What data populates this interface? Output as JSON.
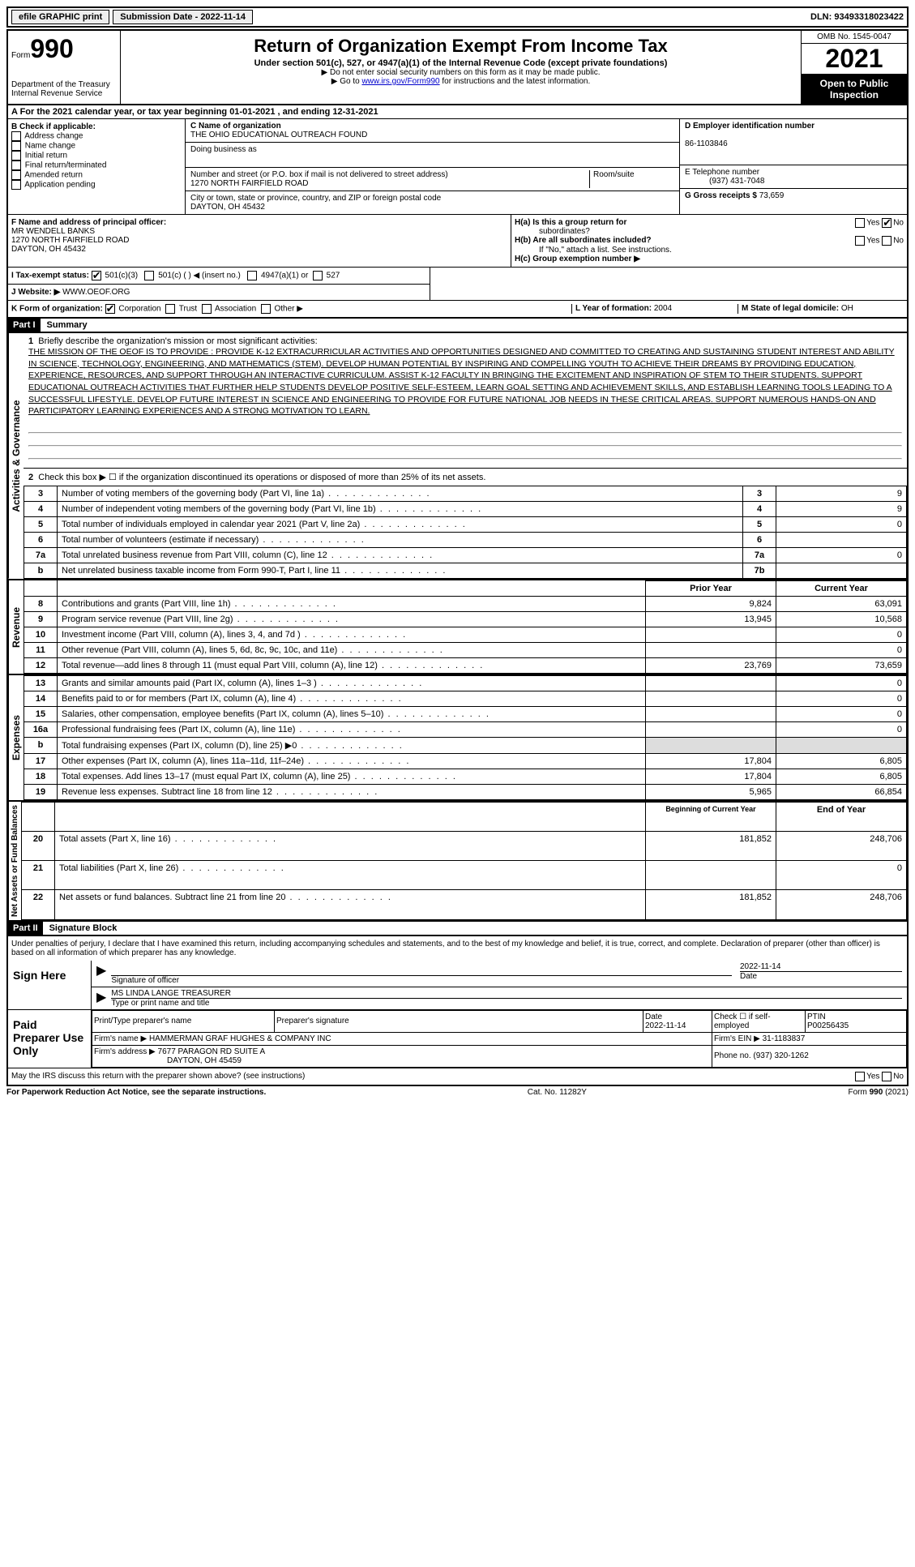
{
  "top_bar": {
    "efile": "efile GRAPHIC print",
    "submission": "Submission Date - 2022-11-14",
    "dln": "DLN: 93493318023422"
  },
  "header": {
    "form_label": "Form",
    "form_number": "990",
    "dept": "Department of the Treasury",
    "irs": "Internal Revenue Service",
    "title": "Return of Organization Exempt From Income Tax",
    "subtitle": "Under section 501(c), 527, or 4947(a)(1) of the Internal Revenue Code (except private foundations)",
    "note1": "▶ Do not enter social security numbers on this form as it may be made public.",
    "note2_prefix": "▶ Go to ",
    "note2_link": "www.irs.gov/Form990",
    "note2_suffix": " for instructions and the latest information.",
    "omb": "OMB No. 1545-0047",
    "year": "2021",
    "open": "Open to Public Inspection"
  },
  "section_a": {
    "line_a": "A For the 2021 calendar year, or tax year beginning 01-01-2021   , and ending 12-31-2021",
    "b_label": "B Check if applicable:",
    "b_items": [
      "Address change",
      "Name change",
      "Initial return",
      "Final return/terminated",
      "Amended return",
      "Application pending"
    ],
    "c_label": "C Name of organization",
    "c_name": "THE OHIO EDUCATIONAL OUTREACH FOUND",
    "dba": "Doing business as",
    "street_label": "Number and street (or P.O. box if mail is not delivered to street address)",
    "street": "1270 NORTH FAIRFIELD ROAD",
    "room_label": "Room/suite",
    "city_label": "City or town, state or province, country, and ZIP or foreign postal code",
    "city": "DAYTON, OH  45432",
    "d_label": "D Employer identification number",
    "d_value": "86-1103846",
    "e_label": "E Telephone number",
    "e_value": "(937) 431-7048",
    "g_label": "G Gross receipts $",
    "g_value": "73,659",
    "f_label": "F  Name and address of principal officer:",
    "f_name": "MR WENDELL BANKS",
    "f_street": "1270 NORTH FAIRFIELD ROAD",
    "f_city": "DAYTON, OH  45432",
    "ha_label": "H(a)  Is this a group return for",
    "ha_sub": "subordinates?",
    "hb_label": "H(b)  Are all subordinates included?",
    "hb_note": "If \"No,\" attach a list. See instructions.",
    "hc_label": "H(c)  Group exemption number ▶",
    "yes": "Yes",
    "no": "No",
    "i_label": "I   Tax-exempt status:",
    "i_501c3": "501(c)(3)",
    "i_501c": "501(c) (  ) ◀ (insert no.)",
    "i_4947": "4947(a)(1) or",
    "i_527": "527",
    "j_label": "J   Website: ▶",
    "j_value": "WWW.OEOF.ORG",
    "k_label": "K Form of organization:",
    "k_corp": "Corporation",
    "k_trust": "Trust",
    "k_assoc": "Association",
    "k_other": "Other ▶",
    "l_label": "L Year of formation:",
    "l_value": "2004",
    "m_label": "M State of legal domicile:",
    "m_value": "OH"
  },
  "part1": {
    "header": "Part I",
    "title": "Summary",
    "side_ag": "Activities & Governance",
    "side_rev": "Revenue",
    "side_exp": "Expenses",
    "side_net": "Net Assets or Fund Balances",
    "line1_label": "Briefly describe the organization's mission or most significant activities:",
    "mission": "THE MISSION OF THE OEOF IS TO PROVIDE : PROVIDE K-12 EXTRACURRICULAR ACTIVITIES AND OPPORTUNITIES DESIGNED AND COMMITTED TO CREATING AND SUSTAINING STUDENT INTEREST AND ABILITY IN SCIENCE, TECHNOLOGY, ENGINEERING, AND MATHEMATICS (STEM). DEVELOP HUMAN POTENTIAL BY INSPIRING AND COMPELLING YOUTH TO ACHIEVE THEIR DREAMS BY PROVIDING EDUCATION, EXPERIENCE, RESOURCES, AND SUPPORT THROUGH AN INTERACTIVE CURRICULUM. ASSIST K-12 FACULTY IN BRINGING THE EXCITEMENT AND INSPIRATION OF STEM TO THEIR STUDENTS. SUPPORT EDUCATIONAL OUTREACH ACTIVITIES THAT FURTHER HELP STUDENTS DEVELOP POSITIVE SELF-ESTEEM, LEARN GOAL SETTING AND ACHIEVEMENT SKILLS, AND ESTABLISH LEARNING TOOLS LEADING TO A SUCCESSFUL LIFESTYLE. DEVELOP FUTURE INTEREST IN SCIENCE AND ENGINEERING TO PROVIDE FOR FUTURE NATIONAL JOB NEEDS IN THESE CRITICAL AREAS. SUPPORT NUMEROUS HANDS-ON AND PARTICIPATORY LEARNING EXPERIENCES AND A STRONG MOTIVATION TO LEARN.",
    "line2": "Check this box ▶ ☐ if the organization discontinued its operations or disposed of more than 25% of its net assets.",
    "rows_gov": [
      {
        "n": "3",
        "label": "Number of voting members of the governing body (Part VI, line 1a)",
        "ref": "3",
        "val": "9"
      },
      {
        "n": "4",
        "label": "Number of independent voting members of the governing body (Part VI, line 1b)",
        "ref": "4",
        "val": "9"
      },
      {
        "n": "5",
        "label": "Total number of individuals employed in calendar year 2021 (Part V, line 2a)",
        "ref": "5",
        "val": "0"
      },
      {
        "n": "6",
        "label": "Total number of volunteers (estimate if necessary)",
        "ref": "6",
        "val": ""
      },
      {
        "n": "7a",
        "label": "Total unrelated business revenue from Part VIII, column (C), line 12",
        "ref": "7a",
        "val": "0"
      },
      {
        "n": "b",
        "label": "Net unrelated business taxable income from Form 990-T, Part I, line 11",
        "ref": "7b",
        "val": ""
      }
    ],
    "prior_year": "Prior Year",
    "current_year": "Current Year",
    "rows_rev": [
      {
        "n": "8",
        "label": "Contributions and grants (Part VIII, line 1h)",
        "py": "9,824",
        "cy": "63,091"
      },
      {
        "n": "9",
        "label": "Program service revenue (Part VIII, line 2g)",
        "py": "13,945",
        "cy": "10,568"
      },
      {
        "n": "10",
        "label": "Investment income (Part VIII, column (A), lines 3, 4, and 7d )",
        "py": "",
        "cy": "0"
      },
      {
        "n": "11",
        "label": "Other revenue (Part VIII, column (A), lines 5, 6d, 8c, 9c, 10c, and 11e)",
        "py": "",
        "cy": "0"
      },
      {
        "n": "12",
        "label": "Total revenue—add lines 8 through 11 (must equal Part VIII, column (A), line 12)",
        "py": "23,769",
        "cy": "73,659"
      }
    ],
    "rows_exp": [
      {
        "n": "13",
        "label": "Grants and similar amounts paid (Part IX, column (A), lines 1–3 )",
        "py": "",
        "cy": "0"
      },
      {
        "n": "14",
        "label": "Benefits paid to or for members (Part IX, column (A), line 4)",
        "py": "",
        "cy": "0"
      },
      {
        "n": "15",
        "label": "Salaries, other compensation, employee benefits (Part IX, column (A), lines 5–10)",
        "py": "",
        "cy": "0"
      },
      {
        "n": "16a",
        "label": "Professional fundraising fees (Part IX, column (A), line 11e)",
        "py": "",
        "cy": "0"
      },
      {
        "n": "b",
        "label": "Total fundraising expenses (Part IX, column (D), line 25) ▶0",
        "py": "shaded",
        "cy": "shaded"
      },
      {
        "n": "17",
        "label": "Other expenses (Part IX, column (A), lines 11a–11d, 11f–24e)",
        "py": "17,804",
        "cy": "6,805"
      },
      {
        "n": "18",
        "label": "Total expenses. Add lines 13–17 (must equal Part IX, column (A), line 25)",
        "py": "17,804",
        "cy": "6,805"
      },
      {
        "n": "19",
        "label": "Revenue less expenses. Subtract line 18 from line 12",
        "py": "5,965",
        "cy": "66,854"
      }
    ],
    "begin_year": "Beginning of Current Year",
    "end_year": "End of Year",
    "rows_net": [
      {
        "n": "20",
        "label": "Total assets (Part X, line 16)",
        "py": "181,852",
        "cy": "248,706"
      },
      {
        "n": "21",
        "label": "Total liabilities (Part X, line 26)",
        "py": "",
        "cy": "0"
      },
      {
        "n": "22",
        "label": "Net assets or fund balances. Subtract line 21 from line 20",
        "py": "181,852",
        "cy": "248,706"
      }
    ]
  },
  "part2": {
    "header": "Part II",
    "title": "Signature Block",
    "perjury": "Under penalties of perjury, I declare that I have examined this return, including accompanying schedules and statements, and to the best of my knowledge and belief, it is true, correct, and complete. Declaration of preparer (other than officer) is based on all information of which preparer has any knowledge.",
    "sign_here": "Sign Here",
    "sig_officer": "Signature of officer",
    "sig_date": "Date",
    "sig_date_val": "2022-11-14",
    "officer_name": "MS LINDA LANGE  TREASURER",
    "type_name": "Type or print name and title",
    "paid_prep": "Paid Preparer Use Only",
    "prep_name_label": "Print/Type preparer's name",
    "prep_sig_label": "Preparer's signature",
    "date_label": "Date",
    "date_val": "2022-11-14",
    "check_self": "Check ☐ if self-employed",
    "ptin_label": "PTIN",
    "ptin": "P00256435",
    "firm_name_label": "Firm's name    ▶",
    "firm_name": "HAMMERMAN GRAF HUGHES & COMPANY INC",
    "firm_ein_label": "Firm's EIN ▶",
    "firm_ein": "31-1183837",
    "firm_addr_label": "Firm's address ▶",
    "firm_addr1": "7677 PARAGON RD SUITE A",
    "firm_addr2": "DAYTON, OH  45459",
    "phone_label": "Phone no.",
    "phone": "(937) 320-1262",
    "discuss": "May the IRS discuss this return with the preparer shown above? (see instructions)"
  },
  "footer": {
    "left": "For Paperwork Reduction Act Notice, see the separate instructions.",
    "center": "Cat. No. 11282Y",
    "right": "Form 990 (2021)"
  }
}
